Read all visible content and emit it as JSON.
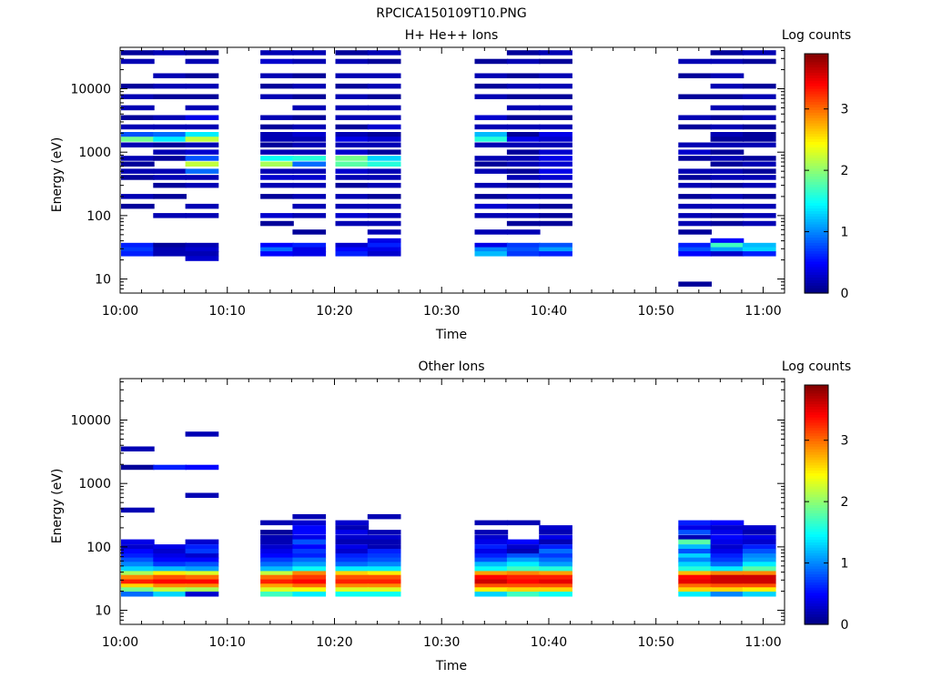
{
  "figure_title": "RPCICA150109T10.PNG",
  "colormap": [
    "#000080",
    "#0000ff",
    "#0080ff",
    "#00ffff",
    "#80ff80",
    "#ffff00",
    "#ff8000",
    "#ff0000",
    "#800000"
  ],
  "chart_data": [
    {
      "type": "heatmap",
      "title": "H+ He++ Ions",
      "xlabel": "Time",
      "ylabel": "Energy (eV)",
      "yscale": "log",
      "ylim": [
        6,
        45000
      ],
      "xlim": [
        "10:00",
        "11:02"
      ],
      "x_ticks": [
        "10:00",
        "10:10",
        "10:20",
        "10:30",
        "10:40",
        "10:50",
        "11:00"
      ],
      "y_ticks": [
        "10",
        "100",
        "1000",
        "10000"
      ],
      "colorbar": {
        "label": "Log counts",
        "range": [
          0,
          3.9
        ],
        "ticks": [
          "0",
          "1",
          "2",
          "3"
        ]
      },
      "grid": false,
      "time_bins": [
        "10:00",
        "10:03",
        "10:06",
        "10:10",
        "10:13",
        "10:16",
        "10:20",
        "10:23",
        "10:33",
        "10:36",
        "10:39",
        "10:52",
        "10:55",
        "10:58"
      ],
      "energy_rows": [
        {
          "energy": 37000,
          "values": [
            0.1,
            0.2,
            0.1,
            null,
            0.2,
            0.2,
            0.1,
            0.2,
            null,
            0.1,
            0.2,
            null,
            0.1,
            0.2
          ]
        },
        {
          "energy": 27000,
          "values": [
            0.2,
            null,
            0.2,
            null,
            0.3,
            0.2,
            0.2,
            0.1,
            0.1,
            0.2,
            0.1,
            0.2,
            0.2,
            0.1
          ]
        },
        {
          "energy": 16000,
          "values": [
            null,
            0.2,
            0.1,
            null,
            0.2,
            0.1,
            0.2,
            0.2,
            0.2,
            0.1,
            0.2,
            0.1,
            0.2,
            null
          ]
        },
        {
          "energy": 11000,
          "values": [
            0.1,
            0.2,
            0.2,
            null,
            0.1,
            0.2,
            0.1,
            0.2,
            0.1,
            0.2,
            0.2,
            null,
            0.2,
            0.1
          ]
        },
        {
          "energy": 7500,
          "values": [
            0.2,
            0.1,
            0.1,
            null,
            0.2,
            0.1,
            0.2,
            0.1,
            0.2,
            0.1,
            0.1,
            0.1,
            0.1,
            0.2
          ]
        },
        {
          "energy": 5000,
          "values": [
            0.2,
            null,
            0.2,
            null,
            null,
            0.2,
            0.2,
            0.2,
            null,
            0.2,
            0.2,
            null,
            0.2,
            0.1
          ]
        },
        {
          "energy": 3500,
          "values": [
            0.1,
            0.2,
            0.4,
            null,
            0.2,
            0.1,
            0.2,
            0.2,
            0.3,
            0.1,
            0.1,
            0.2,
            0.1,
            0.2
          ]
        },
        {
          "energy": 2500,
          "values": [
            0.2,
            0.2,
            0.2,
            null,
            0.1,
            0.2,
            0.1,
            0.3,
            0.2,
            0.2,
            0.2,
            0.1,
            0.2,
            0.1
          ]
        },
        {
          "energy": 1900,
          "values": [
            0.8,
            0.9,
            1.4,
            null,
            0.2,
            0.3,
            0.2,
            0.1,
            1.2,
            0.1,
            0.4,
            null,
            0.2,
            0.1
          ]
        },
        {
          "energy": 1600,
          "values": [
            1.9,
            1.4,
            2.2,
            null,
            0.2,
            0.2,
            0.4,
            0.3,
            1.6,
            0.4,
            0.3,
            null,
            0.1,
            0.1
          ]
        },
        {
          "energy": 1300,
          "values": [
            0.2,
            0.1,
            0.2,
            null,
            0.1,
            0.2,
            0.2,
            0.2,
            0.2,
            0.2,
            0.2,
            0.2,
            0.2,
            0.2
          ]
        },
        {
          "energy": 1000,
          "values": [
            null,
            0.2,
            0.3,
            null,
            0.2,
            0.2,
            0.3,
            0.1,
            null,
            0.1,
            0.3,
            0.3,
            0.1,
            null
          ]
        },
        {
          "energy": 800,
          "values": [
            0.2,
            0.1,
            0.8,
            null,
            1.5,
            1.6,
            1.9,
            1.3,
            0.2,
            0.2,
            0.4,
            0.1,
            0.2,
            0.1
          ]
        },
        {
          "energy": 650,
          "values": [
            0.1,
            null,
            2.2,
            null,
            2.1,
            0.9,
            1.8,
            1.6,
            0.1,
            0.2,
            0.3,
            null,
            0.1,
            0.2
          ]
        },
        {
          "energy": 500,
          "values": [
            0.2,
            0.2,
            0.9,
            null,
            0.2,
            0.2,
            0.3,
            0.2,
            0.2,
            0.1,
            0.4,
            0.2,
            0.2,
            0.1
          ]
        },
        {
          "energy": 400,
          "values": [
            0.1,
            0.2,
            0.2,
            null,
            0.3,
            0.3,
            0.2,
            0.2,
            null,
            0.2,
            0.3,
            0.1,
            0.2,
            0.2
          ]
        },
        {
          "energy": 300,
          "values": [
            null,
            0.1,
            0.2,
            null,
            0.2,
            0.2,
            0.1,
            0.2,
            0.2,
            0.1,
            0.2,
            0.2,
            0.1,
            0.2
          ]
        },
        {
          "energy": 200,
          "values": [
            0.2,
            0.1,
            null,
            null,
            0.1,
            0.2,
            0.2,
            0.1,
            0.1,
            0.2,
            0.2,
            0.1,
            0.2,
            0.1
          ]
        },
        {
          "energy": 140,
          "values": [
            0.1,
            null,
            0.2,
            null,
            null,
            0.2,
            0.2,
            0.2,
            0.3,
            0.2,
            0.1,
            0.2,
            0.2,
            0.2
          ]
        },
        {
          "energy": 100,
          "values": [
            null,
            0.2,
            0.2,
            null,
            0.3,
            0.2,
            0.3,
            0.2,
            0.2,
            0.2,
            0.1,
            0.2,
            0.1,
            0.2
          ]
        },
        {
          "energy": 75,
          "values": [
            null,
            null,
            null,
            null,
            0.1,
            null,
            0.2,
            0.2,
            null,
            0.1,
            0.1,
            0.2,
            0.1,
            0.2
          ]
        },
        {
          "energy": 55,
          "values": [
            null,
            null,
            null,
            null,
            null,
            0.1,
            null,
            0.2,
            0.2,
            0.2,
            null,
            0.1,
            null,
            null
          ]
        },
        {
          "energy": 40,
          "values": [
            null,
            null,
            null,
            null,
            null,
            null,
            null,
            0.4,
            null,
            null,
            null,
            null,
            0.5,
            null
          ]
        },
        {
          "energy": 34,
          "values": [
            0.6,
            0.1,
            0.2,
            null,
            0.5,
            0.6,
            0.3,
            0.6,
            0.4,
            0.7,
            0.8,
            0.6,
            1.7,
            1.2
          ]
        },
        {
          "energy": 29,
          "values": [
            0.7,
            0.2,
            0.3,
            null,
            0.9,
            0.4,
            0.5,
            0.4,
            1.0,
            0.8,
            1.1,
            0.8,
            1.1,
            1.3
          ]
        },
        {
          "energy": 25,
          "values": [
            0.6,
            0.2,
            0.2,
            null,
            0.5,
            0.4,
            0.6,
            0.3,
            1.2,
            0.7,
            0.6,
            0.5,
            0.3,
            0.6
          ]
        },
        {
          "energy": 21,
          "values": [
            null,
            null,
            0.3,
            null,
            null,
            null,
            null,
            null,
            null,
            null,
            null,
            null,
            null,
            null
          ]
        },
        {
          "energy": 8.3,
          "values": [
            null,
            null,
            null,
            null,
            null,
            null,
            null,
            null,
            null,
            null,
            null,
            0.1,
            null,
            null
          ]
        }
      ]
    },
    {
      "type": "heatmap",
      "title": "Other Ions",
      "xlabel": "Time",
      "ylabel": "Energy (eV)",
      "yscale": "log",
      "ylim": [
        6,
        45000
      ],
      "xlim": [
        "10:00",
        "11:02"
      ],
      "x_ticks": [
        "10:00",
        "10:10",
        "10:20",
        "10:30",
        "10:40",
        "10:50",
        "11:00"
      ],
      "y_ticks": [
        "10",
        "100",
        "1000",
        "10000"
      ],
      "colorbar": {
        "label": "Log counts",
        "range": [
          0,
          3.9
        ],
        "ticks": [
          "0",
          "1",
          "2",
          "3"
        ]
      },
      "grid": false,
      "time_bins": [
        "10:00",
        "10:03",
        "10:06",
        "10:10",
        "10:13",
        "10:16",
        "10:20",
        "10:23",
        "10:33",
        "10:36",
        "10:39",
        "10:52",
        "10:55",
        "10:58"
      ],
      "energy_rows": [
        {
          "energy": 6000,
          "values": [
            null,
            null,
            0.2,
            null,
            null,
            null,
            null,
            null,
            null,
            null,
            null,
            null,
            null,
            null
          ]
        },
        {
          "energy": 3500,
          "values": [
            0.2,
            null,
            null,
            null,
            null,
            null,
            null,
            null,
            null,
            null,
            null,
            null,
            null,
            null
          ]
        },
        {
          "energy": 1800,
          "values": [
            0.1,
            0.6,
            0.5,
            null,
            null,
            null,
            null,
            null,
            null,
            null,
            null,
            null,
            null,
            null
          ]
        },
        {
          "energy": 650,
          "values": [
            null,
            null,
            0.2,
            null,
            null,
            null,
            null,
            null,
            null,
            null,
            null,
            null,
            null,
            null
          ]
        },
        {
          "energy": 380,
          "values": [
            0.2,
            null,
            null,
            null,
            null,
            null,
            null,
            null,
            null,
            null,
            null,
            null,
            null,
            null
          ]
        },
        {
          "energy": 300,
          "values": [
            null,
            null,
            null,
            null,
            null,
            0.2,
            null,
            0.2,
            null,
            null,
            null,
            null,
            null,
            null
          ]
        },
        {
          "energy": 240,
          "values": [
            null,
            null,
            null,
            null,
            0.2,
            0.3,
            0.3,
            null,
            0.2,
            0.2,
            null,
            0.6,
            0.5,
            null
          ]
        },
        {
          "energy": 200,
          "values": [
            null,
            null,
            null,
            null,
            null,
            0.5,
            0.2,
            null,
            null,
            null,
            0.3,
            0.4,
            0.3,
            0.3
          ]
        },
        {
          "energy": 170,
          "values": [
            null,
            null,
            null,
            null,
            0.1,
            0.5,
            0.4,
            0.2,
            0.2,
            null,
            0.2,
            0.8,
            0.4,
            0.2
          ]
        },
        {
          "energy": 140,
          "values": [
            null,
            null,
            null,
            null,
            0.2,
            0.4,
            0.3,
            0.3,
            0.3,
            null,
            0.4,
            0.2,
            0.5,
            0.4
          ]
        },
        {
          "energy": 120,
          "values": [
            0.4,
            null,
            0.3,
            null,
            0.2,
            0.8,
            0.2,
            0.2,
            0.4,
            0.5,
            0.2,
            1.8,
            0.4,
            0.3
          ]
        },
        {
          "energy": 100,
          "values": [
            0.3,
            0.4,
            0.6,
            null,
            0.3,
            0.5,
            0.4,
            0.2,
            0.6,
            0.3,
            0.6,
            1.2,
            0.3,
            0.6
          ]
        },
        {
          "energy": 85,
          "values": [
            0.5,
            0.3,
            0.7,
            null,
            0.4,
            0.7,
            0.3,
            0.6,
            0.4,
            0.2,
            0.9,
            0.8,
            0.4,
            0.8
          ]
        },
        {
          "energy": 72,
          "values": [
            0.6,
            0.4,
            0.3,
            null,
            0.5,
            0.6,
            0.6,
            0.7,
            0.6,
            0.8,
            0.7,
            1.3,
            0.6,
            1.0
          ]
        },
        {
          "energy": 62,
          "values": [
            0.8,
            0.5,
            0.5,
            null,
            0.7,
            0.9,
            0.7,
            0.8,
            0.8,
            1.1,
            0.9,
            1.0,
            0.7,
            1.1
          ]
        },
        {
          "energy": 53,
          "values": [
            1.0,
            0.7,
            0.8,
            null,
            0.9,
            1.1,
            0.9,
            1.0,
            1.2,
            1.4,
            1.1,
            1.3,
            0.9,
            1.4
          ]
        },
        {
          "energy": 45,
          "values": [
            1.3,
            1.2,
            1.1,
            null,
            1.2,
            1.5,
            1.4,
            1.4,
            1.5,
            1.7,
            1.6,
            1.6,
            1.4,
            1.8
          ]
        },
        {
          "energy": 38,
          "values": [
            2.1,
            2.5,
            2.3,
            null,
            2.2,
            2.9,
            2.6,
            2.5,
            2.8,
            2.9,
            2.8,
            2.7,
            2.9,
            2.9
          ]
        },
        {
          "energy": 33,
          "values": [
            2.9,
            3.1,
            3.0,
            null,
            3.0,
            3.2,
            3.1,
            3.1,
            3.4,
            3.3,
            3.3,
            3.4,
            3.6,
            3.6
          ]
        },
        {
          "energy": 28,
          "values": [
            3.3,
            3.4,
            3.4,
            null,
            3.3,
            3.4,
            3.3,
            3.3,
            3.6,
            3.4,
            3.5,
            3.5,
            3.6,
            3.6
          ]
        },
        {
          "energy": 24,
          "values": [
            2.6,
            2.9,
            2.9,
            null,
            2.8,
            3.0,
            2.9,
            2.9,
            3.1,
            3.1,
            3.1,
            3.0,
            3.1,
            3.1
          ]
        },
        {
          "energy": 21,
          "values": [
            1.9,
            2.2,
            2.1,
            null,
            2.3,
            2.4,
            2.3,
            2.3,
            2.5,
            2.6,
            2.6,
            2.6,
            2.6,
            2.5
          ]
        },
        {
          "energy": 18,
          "values": [
            0.9,
            1.3,
            0.3,
            null,
            1.7,
            1.4,
            1.5,
            1.5,
            1.3,
            1.7,
            1.5,
            1.4,
            1.0,
            1.3
          ]
        }
      ]
    }
  ]
}
